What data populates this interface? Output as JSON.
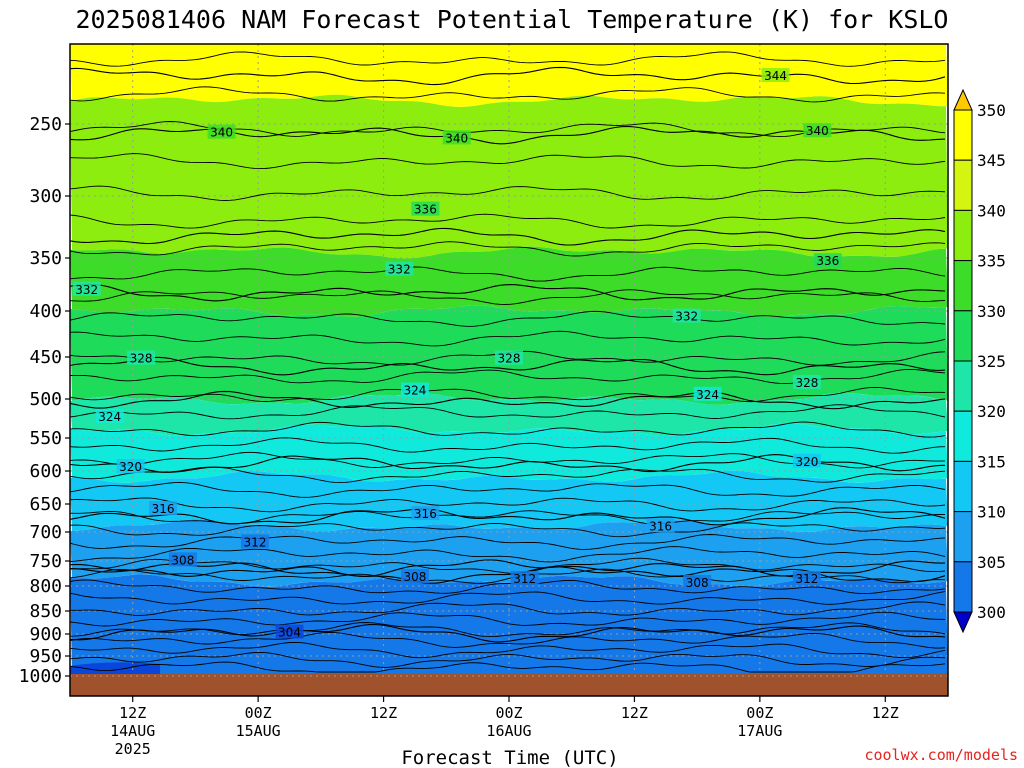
{
  "chart_data": {
    "type": "heatmap",
    "title": "2025081406 NAM Forecast Potential Temperature (K) for KSLO",
    "xlabel": "Forecast Time (UTC)",
    "ylabel": "",
    "y_ticks": [
      "250",
      "300",
      "350",
      "400",
      "450",
      "500",
      "550",
      "600",
      "650",
      "700",
      "750",
      "800",
      "850",
      "900",
      "950",
      "1000"
    ],
    "x_ticks": [
      {
        "label": "12Z",
        "date": "14AUG",
        "year": "2025",
        "hours": 6
      },
      {
        "label": "00Z",
        "date": "15AUG",
        "hours": 18
      },
      {
        "label": "12Z",
        "hours": 30
      },
      {
        "label": "00Z",
        "date": "16AUG",
        "hours": 42
      },
      {
        "label": "12Z",
        "hours": 54
      },
      {
        "label": "00Z",
        "date": "17AUG",
        "hours": 66
      },
      {
        "label": "12Z",
        "hours": 78
      }
    ],
    "xlim_hours": [
      0,
      84
    ],
    "ylim_hPa": [
      1020,
      200
    ],
    "colorbar": {
      "ticks": [
        "300",
        "305",
        "310",
        "315",
        "320",
        "325",
        "330",
        "335",
        "340",
        "345",
        "350"
      ],
      "colors": [
        "#0000cd",
        "#0a46dc",
        "#1478e8",
        "#1ea0f0",
        "#14c8f5",
        "#10eadc",
        "#1ee6a8",
        "#1edc5a",
        "#3cdc28",
        "#8ced0f",
        "#d4f50f",
        "#ffff00",
        "#ffc800"
      ]
    },
    "bands_K": [
      {
        "theta": 350,
        "top_hPa": 200,
        "bottom_hPa": 235
      },
      {
        "theta": 340,
        "top_hPa": 235,
        "bottom_hPa": 345
      },
      {
        "theta": 335,
        "top_hPa": 345,
        "bottom_hPa": 400
      },
      {
        "theta": 330,
        "top_hPa": 400,
        "bottom_hPa": 500
      },
      {
        "theta": 325,
        "top_hPa": 500,
        "bottom_hPa": 540
      },
      {
        "theta": 320,
        "top_hPa": 540,
        "bottom_hPa": 610
      },
      {
        "theta": 315,
        "top_hPa": 610,
        "bottom_hPa": 690
      },
      {
        "theta": 310,
        "top_hPa": 690,
        "bottom_hPa": 790
      },
      {
        "theta": 305,
        "top_hPa": 790,
        "bottom_hPa": 1000
      }
    ],
    "contour_labels": [
      {
        "value": "344",
        "hours": 67.5,
        "hPa": 220
      },
      {
        "value": "340",
        "hours": 14.5,
        "hPa": 256
      },
      {
        "value": "340",
        "hours": 37.0,
        "hPa": 260
      },
      {
        "value": "340",
        "hours": 71.5,
        "hPa": 255
      },
      {
        "value": "336",
        "hours": 34.0,
        "hPa": 311
      },
      {
        "value": "336",
        "hours": 72.5,
        "hPa": 353
      },
      {
        "value": "332",
        "hours": 1.6,
        "hPa": 380
      },
      {
        "value": "332",
        "hours": 31.5,
        "hPa": 361
      },
      {
        "value": "332",
        "hours": 59.0,
        "hPa": 406
      },
      {
        "value": "328",
        "hours": 6.8,
        "hPa": 452
      },
      {
        "value": "328",
        "hours": 42.0,
        "hPa": 452
      },
      {
        "value": "328",
        "hours": 70.5,
        "hPa": 481
      },
      {
        "value": "324",
        "hours": 3.8,
        "hPa": 523
      },
      {
        "value": "324",
        "hours": 33.0,
        "hPa": 490
      },
      {
        "value": "324",
        "hours": 61.0,
        "hPa": 495
      },
      {
        "value": "320",
        "hours": 5.8,
        "hPa": 594
      },
      {
        "value": "320",
        "hours": 70.5,
        "hPa": 586
      },
      {
        "value": "316",
        "hours": 8.9,
        "hPa": 659
      },
      {
        "value": "316",
        "hours": 34.0,
        "hPa": 668
      },
      {
        "value": "316",
        "hours": 56.5,
        "hPa": 690
      },
      {
        "value": "312",
        "hours": 17.7,
        "hPa": 718
      },
      {
        "value": "312",
        "hours": 43.5,
        "hPa": 786
      },
      {
        "value": "312",
        "hours": 70.5,
        "hPa": 786
      },
      {
        "value": "308",
        "hours": 10.8,
        "hPa": 749
      },
      {
        "value": "308",
        "hours": 33.0,
        "hPa": 782
      },
      {
        "value": "308",
        "hours": 60.0,
        "hPa": 794
      },
      {
        "value": "304",
        "hours": 21.0,
        "hPa": 897
      }
    ]
  },
  "footer": {
    "credit": "coolwx.com/models",
    "credit_color": "#e8231e"
  },
  "colors": {
    "ground": "#a0522d",
    "contour": "#000000",
    "grid": "#9a9a9a"
  }
}
